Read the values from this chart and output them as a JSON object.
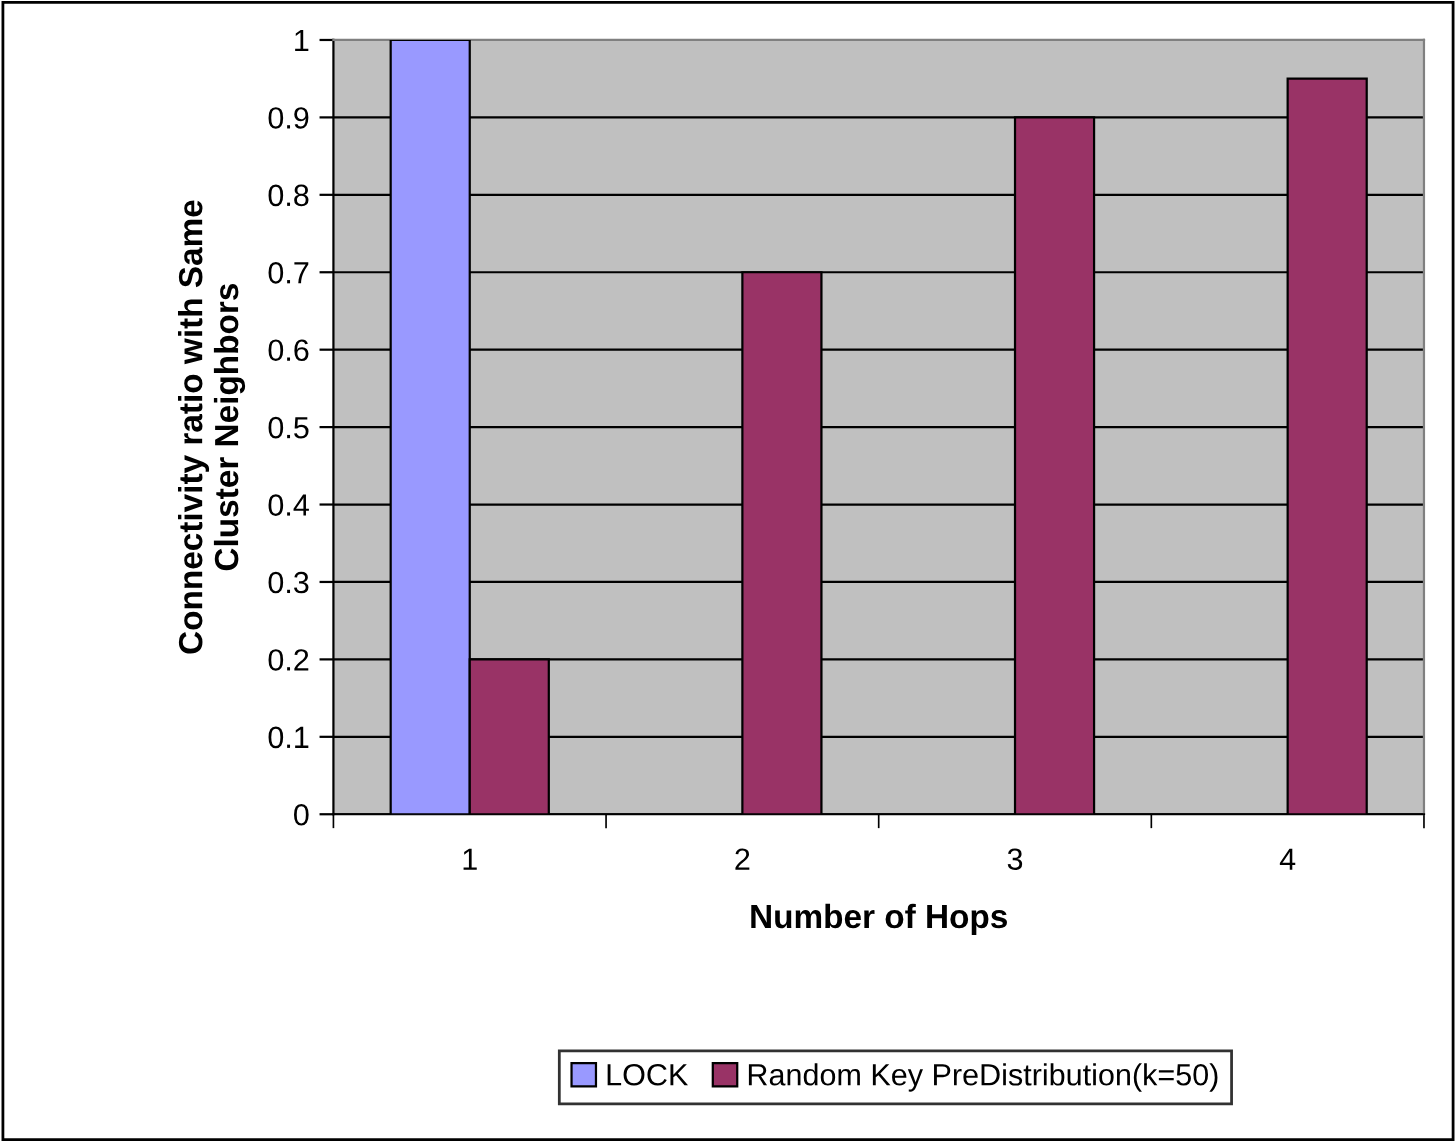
{
  "chart_data": {
    "type": "bar",
    "xlabel": "Number of Hops",
    "ylabel": "Connectivity ratio with Same\nCluster Neighbors",
    "categories": [
      "1",
      "2",
      "3",
      "4"
    ],
    "series": [
      {
        "name": "LOCK",
        "color": "#9999ff",
        "values": [
          1,
          null,
          null,
          null
        ]
      },
      {
        "name": "Random Key PreDistribution(k=50)",
        "color": "#993366",
        "values": [
          0.2,
          0.7,
          0.9,
          0.95
        ]
      }
    ],
    "ylim": [
      0,
      1
    ],
    "yticks": [
      0,
      0.1,
      0.2,
      0.3,
      0.4,
      0.5,
      0.6,
      0.7,
      0.8,
      0.9,
      1
    ],
    "grid": "y",
    "legend": "bottom"
  }
}
